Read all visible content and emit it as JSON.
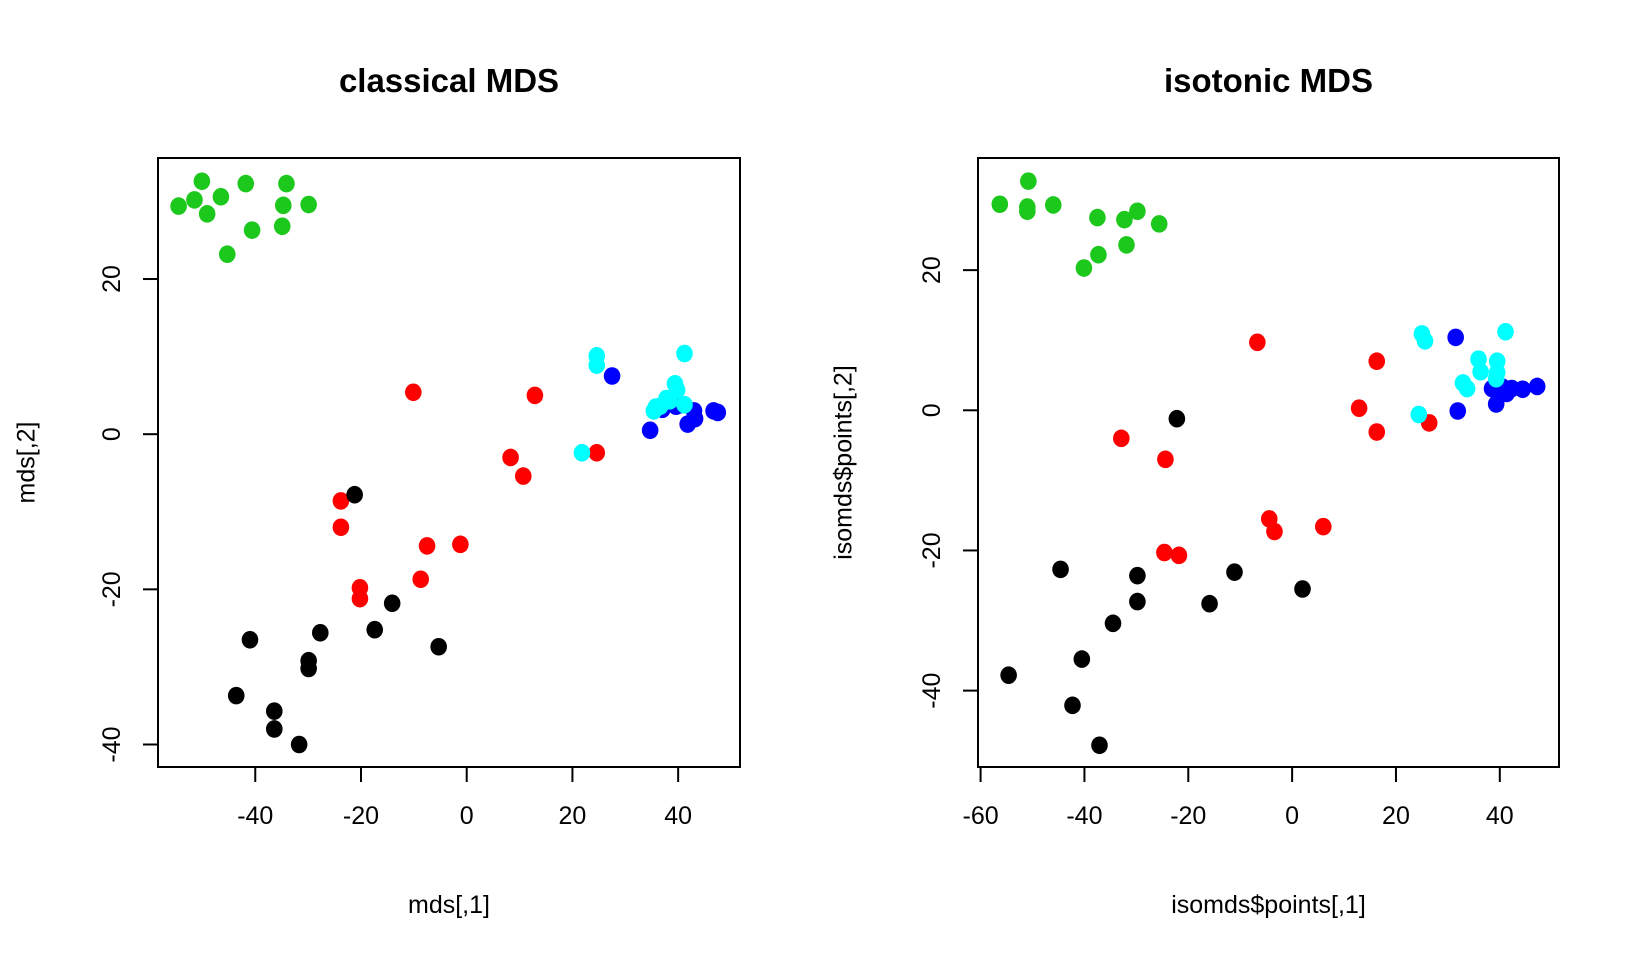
{
  "chart_data": [
    {
      "type": "scatter",
      "title": "classical MDS",
      "xlabel": "mds[,1]",
      "ylabel": "mds[,2]",
      "xlim": [
        -58.4,
        51.7
      ],
      "ylim": [
        -42.9,
        35.6
      ],
      "xticks": [
        -40,
        -20,
        0,
        20,
        40
      ],
      "yticks": [
        -40,
        -20,
        0,
        20
      ],
      "grid": false,
      "series": [
        {
          "color": "#1DC81D",
          "points": [
            [
              -54.5,
              29.4
            ],
            [
              -51.5,
              30.2
            ],
            [
              -50.1,
              32.6
            ],
            [
              -49.1,
              28.4
            ],
            [
              -46.5,
              30.6
            ],
            [
              -45.3,
              23.2
            ],
            [
              -41.8,
              32.3
            ],
            [
              -40.6,
              26.3
            ],
            [
              -34.9,
              26.8
            ],
            [
              -34.1,
              32.3
            ],
            [
              -34.7,
              29.5
            ],
            [
              -29.9,
              29.6
            ]
          ]
        },
        {
          "color": "#FF0000",
          "points": [
            [
              -10.1,
              5.4
            ],
            [
              12.9,
              5.0
            ],
            [
              8.3,
              -3.0
            ],
            [
              10.7,
              -5.4
            ],
            [
              24.6,
              -2.4
            ],
            [
              -23.8,
              -8.6
            ],
            [
              -23.8,
              -12.0
            ],
            [
              -7.5,
              -14.4
            ],
            [
              -1.2,
              -14.2
            ],
            [
              -8.7,
              -18.7
            ],
            [
              -20.2,
              -19.8
            ],
            [
              -20.2,
              -21.2
            ]
          ]
        },
        {
          "color": "#000000",
          "points": [
            [
              -21.2,
              -7.8
            ],
            [
              -5.3,
              -27.4
            ],
            [
              -14.1,
              -21.8
            ],
            [
              -17.4,
              -25.2
            ],
            [
              -27.7,
              -25.6
            ],
            [
              -29.9,
              -29.2
            ],
            [
              -29.9,
              -30.2
            ],
            [
              -41.0,
              -26.5
            ],
            [
              -43.6,
              -33.7
            ],
            [
              -36.4,
              -35.7
            ],
            [
              -36.4,
              -38.0
            ],
            [
              -31.7,
              -40.0
            ]
          ]
        },
        {
          "color": "#0000FF",
          "points": [
            [
              27.5,
              7.5
            ],
            [
              34.7,
              0.5
            ],
            [
              41.8,
              1.3
            ],
            [
              43.0,
              3.0
            ],
            [
              43.2,
              2.0
            ],
            [
              46.7,
              3.0
            ],
            [
              47.5,
              2.8
            ],
            [
              39.6,
              3.6
            ],
            [
              37.0,
              3.2
            ],
            [
              40.4,
              3.8
            ]
          ]
        },
        {
          "color": "#00FFFF",
          "points": [
            [
              24.6,
              10.1
            ],
            [
              24.6,
              8.9
            ],
            [
              41.2,
              10.4
            ],
            [
              39.4,
              6.5
            ],
            [
              39.8,
              5.7
            ],
            [
              37.8,
              4.6
            ],
            [
              35.8,
              3.5
            ],
            [
              35.4,
              3.0
            ],
            [
              41.2,
              3.8
            ],
            [
              21.8,
              -2.4
            ],
            [
              36.6,
              3.6
            ],
            [
              38.4,
              4.3
            ]
          ]
        }
      ]
    },
    {
      "type": "scatter",
      "title": "isotonic MDS",
      "xlabel": "isomds$points[,1]",
      "ylabel": "isomds$points[,2]",
      "xlim": [
        -60.5,
        51.4
      ],
      "ylim": [
        -50.9,
        36.0
      ],
      "xticks": [
        -60,
        -40,
        -20,
        0,
        20,
        40
      ],
      "yticks": [
        -40,
        -20,
        0,
        20
      ],
      "grid": false,
      "series": [
        {
          "color": "#1DC81D",
          "points": [
            [
              -56.3,
              29.4
            ],
            [
              -50.8,
              32.7
            ],
            [
              -51.0,
              29.0
            ],
            [
              -51.0,
              28.4
            ],
            [
              -46.0,
              29.3
            ],
            [
              -37.5,
              27.5
            ],
            [
              -29.8,
              28.4
            ],
            [
              -32.3,
              27.2
            ],
            [
              -25.6,
              26.6
            ],
            [
              -40.1,
              20.3
            ],
            [
              -37.3,
              22.2
            ],
            [
              -31.9,
              23.6
            ]
          ]
        },
        {
          "color": "#FF0000",
          "points": [
            [
              -6.7,
              9.7
            ],
            [
              16.3,
              7.0
            ],
            [
              12.9,
              0.3
            ],
            [
              16.3,
              -3.1
            ],
            [
              26.4,
              -1.8
            ],
            [
              -32.9,
              -4.0
            ],
            [
              -24.4,
              -7.0
            ],
            [
              -24.6,
              -20.3
            ],
            [
              -21.8,
              -20.7
            ],
            [
              -4.4,
              -15.5
            ],
            [
              -3.4,
              -17.3
            ],
            [
              6.0,
              -16.6
            ]
          ]
        },
        {
          "color": "#000000",
          "points": [
            [
              -22.2,
              -1.2
            ],
            [
              -44.6,
              -22.7
            ],
            [
              -29.8,
              -23.6
            ],
            [
              -11.1,
              -23.1
            ],
            [
              2.0,
              -25.5
            ],
            [
              -29.8,
              -27.3
            ],
            [
              -15.9,
              -27.6
            ],
            [
              -34.5,
              -30.4
            ],
            [
              -40.5,
              -35.5
            ],
            [
              -54.6,
              -37.8
            ],
            [
              -42.3,
              -42.1
            ],
            [
              -37.1,
              -47.8
            ]
          ]
        },
        {
          "color": "#0000FF",
          "points": [
            [
              31.5,
              10.4
            ],
            [
              31.9,
              -0.1
            ],
            [
              38.5,
              3.1
            ],
            [
              39.3,
              0.9
            ],
            [
              42.3,
              3.1
            ],
            [
              44.4,
              3.0
            ],
            [
              47.2,
              3.4
            ],
            [
              41.3,
              2.4
            ],
            [
              39.7,
              2.8
            ],
            [
              40.5,
              3.3
            ]
          ]
        },
        {
          "color": "#00FFFF",
          "points": [
            [
              25.0,
              10.9
            ],
            [
              25.6,
              9.9
            ],
            [
              41.1,
              11.2
            ],
            [
              35.9,
              7.3
            ],
            [
              39.5,
              7.0
            ],
            [
              36.3,
              5.5
            ],
            [
              39.5,
              5.4
            ],
            [
              39.3,
              4.5
            ],
            [
              32.9,
              3.9
            ],
            [
              33.7,
              3.1
            ],
            [
              24.4,
              -0.6
            ]
          ]
        }
      ]
    }
  ]
}
